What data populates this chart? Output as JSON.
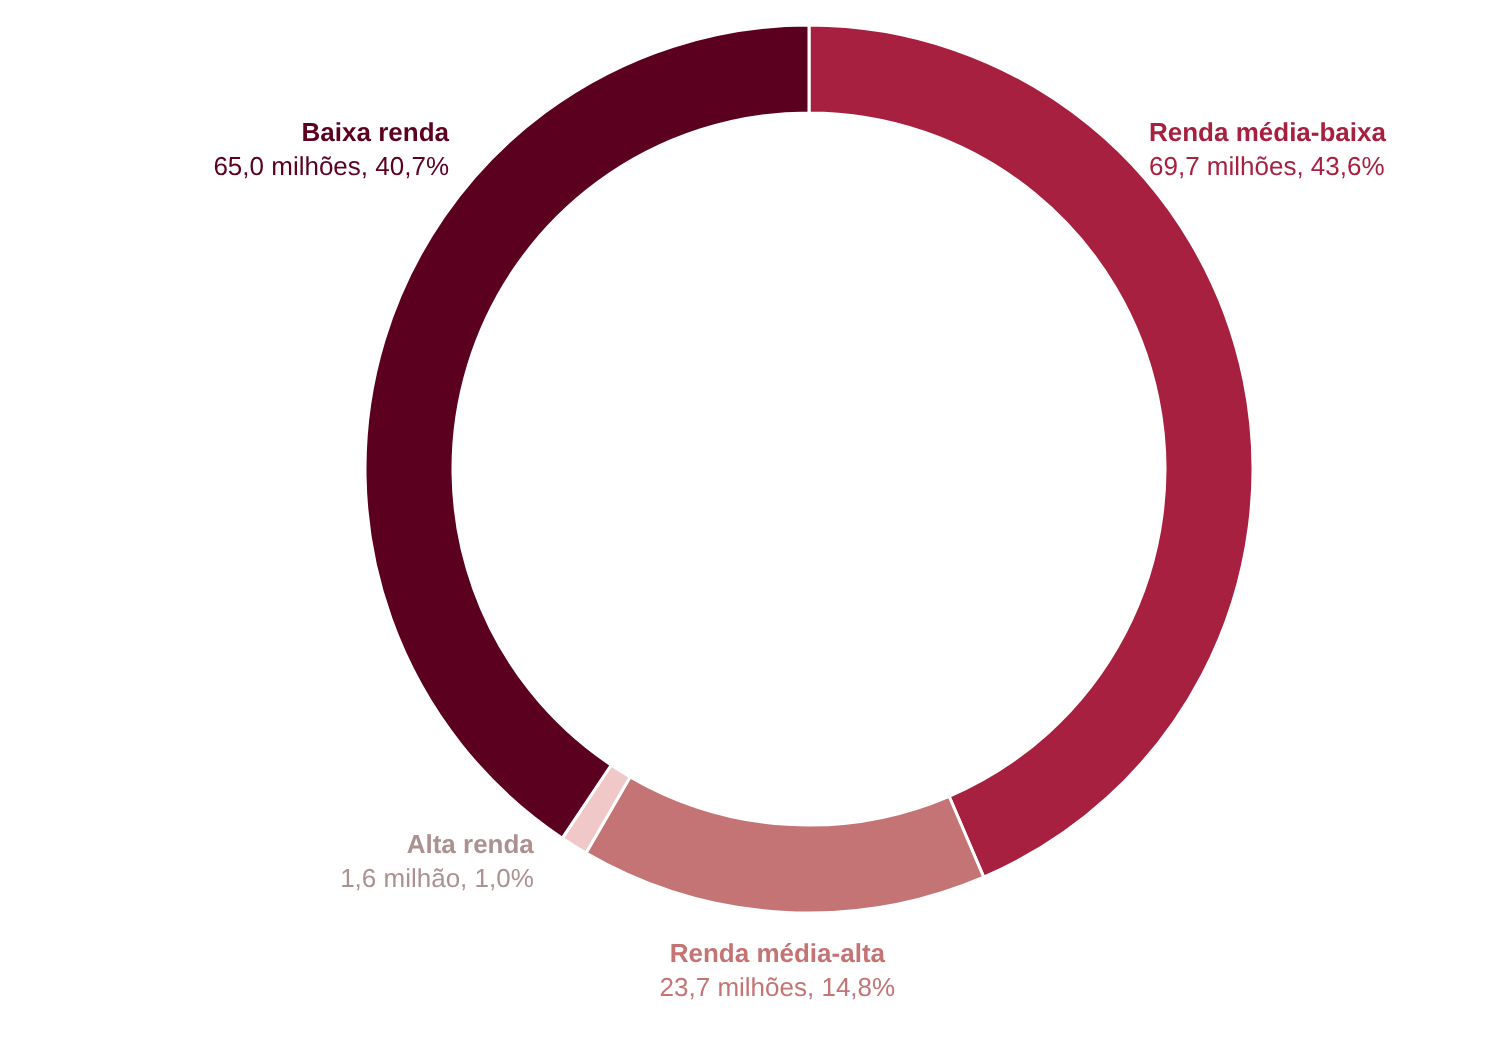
{
  "chart_data": {
    "type": "donut",
    "categories": [
      "Renda média-baixa",
      "Renda média-alta",
      "Alta renda",
      "Baixa renda"
    ],
    "values": [
      69.7,
      23.7,
      1.6,
      65.0
    ],
    "colors": [
      "#a8203f",
      "#c47474",
      "#f0c8c8",
      "#5c0020"
    ],
    "value_labels": [
      "69,7 milhões, 43,6%",
      "23,7 milhões, 14,8%",
      "1,6 milhão, 1,0%",
      "65,0 milhões, 40,7%"
    ]
  }
}
